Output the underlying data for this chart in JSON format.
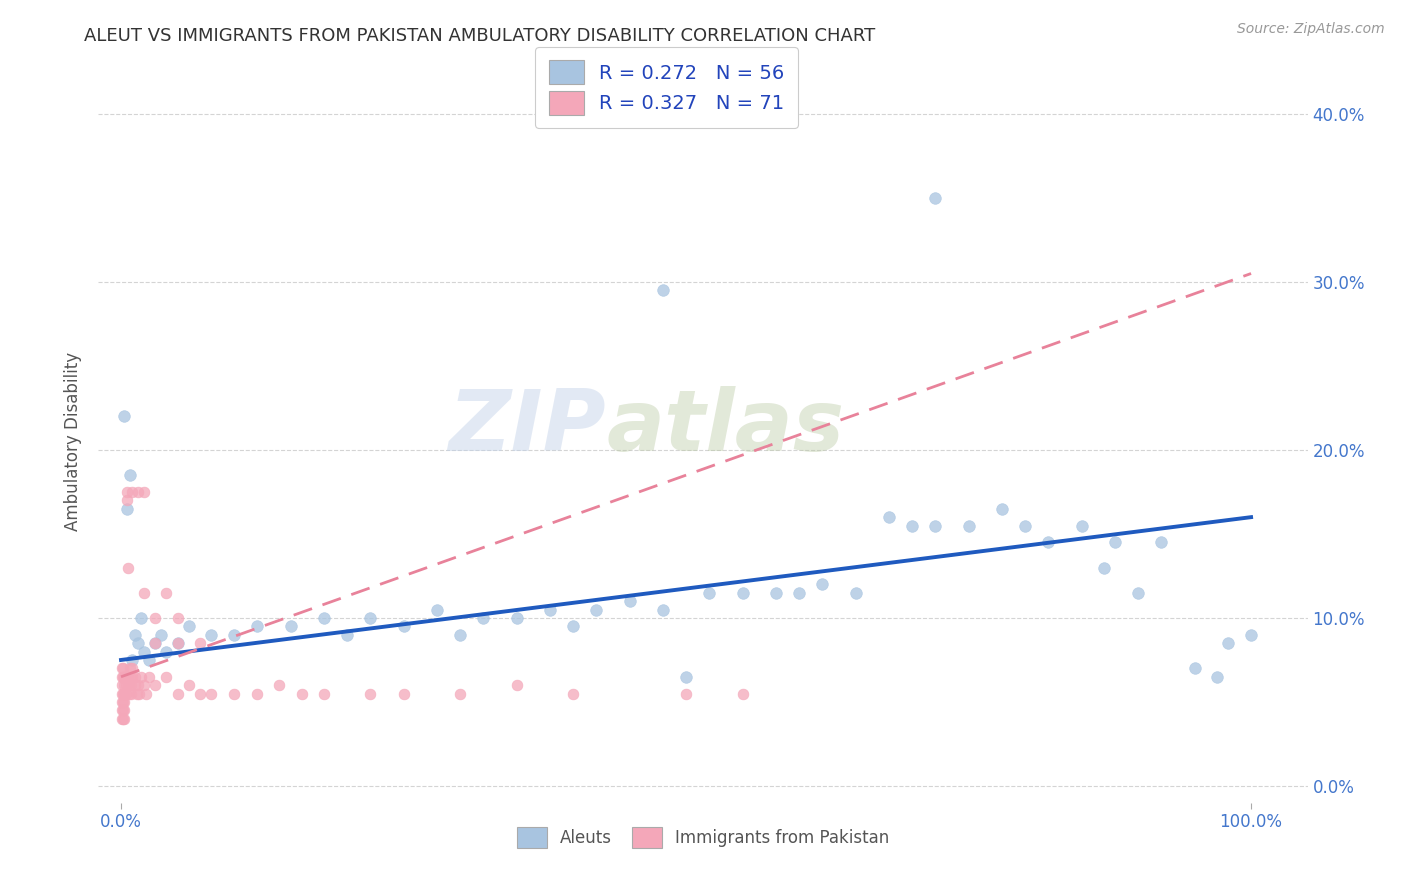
{
  "title": "ALEUT VS IMMIGRANTS FROM PAKISTAN AMBULATORY DISABILITY CORRELATION CHART",
  "source": "Source: ZipAtlas.com",
  "ylabel": "Ambulatory Disability",
  "legend_r1": "R = 0.272   N = 56",
  "legend_r2": "R = 0.327   N = 71",
  "watermark_zip": "ZIP",
  "watermark_atlas": "atlas",
  "aleut_color": "#a8c4e0",
  "pakistan_color": "#f4a7b9",
  "aleut_line_color": "#1f5abf",
  "pakistan_line_color": "#e8829a",
  "aleut_scatter": [
    [
      0.003,
      0.22
    ],
    [
      0.005,
      0.165
    ],
    [
      0.008,
      0.185
    ],
    [
      0.01,
      0.075
    ],
    [
      0.012,
      0.09
    ],
    [
      0.015,
      0.085
    ],
    [
      0.018,
      0.1
    ],
    [
      0.02,
      0.08
    ],
    [
      0.025,
      0.075
    ],
    [
      0.03,
      0.085
    ],
    [
      0.035,
      0.09
    ],
    [
      0.04,
      0.08
    ],
    [
      0.05,
      0.085
    ],
    [
      0.06,
      0.095
    ],
    [
      0.08,
      0.09
    ],
    [
      0.1,
      0.09
    ],
    [
      0.12,
      0.095
    ],
    [
      0.15,
      0.095
    ],
    [
      0.18,
      0.1
    ],
    [
      0.2,
      0.09
    ],
    [
      0.22,
      0.1
    ],
    [
      0.25,
      0.095
    ],
    [
      0.28,
      0.105
    ],
    [
      0.3,
      0.09
    ],
    [
      0.32,
      0.1
    ],
    [
      0.35,
      0.1
    ],
    [
      0.38,
      0.105
    ],
    [
      0.4,
      0.095
    ],
    [
      0.42,
      0.105
    ],
    [
      0.45,
      0.11
    ],
    [
      0.48,
      0.105
    ],
    [
      0.5,
      0.065
    ],
    [
      0.52,
      0.115
    ],
    [
      0.55,
      0.115
    ],
    [
      0.58,
      0.115
    ],
    [
      0.6,
      0.115
    ],
    [
      0.62,
      0.12
    ],
    [
      0.65,
      0.115
    ],
    [
      0.68,
      0.16
    ],
    [
      0.7,
      0.155
    ],
    [
      0.72,
      0.155
    ],
    [
      0.75,
      0.155
    ],
    [
      0.78,
      0.165
    ],
    [
      0.8,
      0.155
    ],
    [
      0.82,
      0.145
    ],
    [
      0.85,
      0.155
    ],
    [
      0.87,
      0.13
    ],
    [
      0.88,
      0.145
    ],
    [
      0.9,
      0.115
    ],
    [
      0.92,
      0.145
    ],
    [
      0.95,
      0.07
    ],
    [
      0.97,
      0.065
    ],
    [
      0.98,
      0.085
    ],
    [
      1.0,
      0.09
    ],
    [
      0.48,
      0.295
    ],
    [
      0.72,
      0.35
    ]
  ],
  "pakistan_scatter": [
    [
      0.001,
      0.065
    ],
    [
      0.001,
      0.07
    ],
    [
      0.001,
      0.05
    ],
    [
      0.001,
      0.055
    ],
    [
      0.001,
      0.045
    ],
    [
      0.001,
      0.06
    ],
    [
      0.001,
      0.04
    ],
    [
      0.002,
      0.065
    ],
    [
      0.002,
      0.055
    ],
    [
      0.002,
      0.07
    ],
    [
      0.002,
      0.045
    ],
    [
      0.002,
      0.05
    ],
    [
      0.002,
      0.04
    ],
    [
      0.003,
      0.06
    ],
    [
      0.003,
      0.055
    ],
    [
      0.003,
      0.065
    ],
    [
      0.003,
      0.05
    ],
    [
      0.003,
      0.045
    ],
    [
      0.003,
      0.04
    ],
    [
      0.004,
      0.065
    ],
    [
      0.004,
      0.055
    ],
    [
      0.004,
      0.06
    ],
    [
      0.005,
      0.17
    ],
    [
      0.005,
      0.175
    ],
    [
      0.006,
      0.065
    ],
    [
      0.006,
      0.13
    ],
    [
      0.007,
      0.055
    ],
    [
      0.007,
      0.06
    ],
    [
      0.008,
      0.065
    ],
    [
      0.008,
      0.07
    ],
    [
      0.009,
      0.055
    ],
    [
      0.009,
      0.06
    ],
    [
      0.01,
      0.07
    ],
    [
      0.01,
      0.065
    ],
    [
      0.012,
      0.065
    ],
    [
      0.012,
      0.06
    ],
    [
      0.014,
      0.055
    ],
    [
      0.015,
      0.06
    ],
    [
      0.016,
      0.055
    ],
    [
      0.018,
      0.065
    ],
    [
      0.02,
      0.06
    ],
    [
      0.022,
      0.055
    ],
    [
      0.025,
      0.065
    ],
    [
      0.03,
      0.06
    ],
    [
      0.04,
      0.065
    ],
    [
      0.05,
      0.055
    ],
    [
      0.06,
      0.06
    ],
    [
      0.07,
      0.055
    ],
    [
      0.08,
      0.055
    ],
    [
      0.1,
      0.055
    ],
    [
      0.12,
      0.055
    ],
    [
      0.14,
      0.06
    ],
    [
      0.16,
      0.055
    ],
    [
      0.18,
      0.055
    ],
    [
      0.22,
      0.055
    ],
    [
      0.25,
      0.055
    ],
    [
      0.3,
      0.055
    ],
    [
      0.35,
      0.06
    ],
    [
      0.4,
      0.055
    ],
    [
      0.5,
      0.055
    ],
    [
      0.55,
      0.055
    ],
    [
      0.03,
      0.085
    ],
    [
      0.05,
      0.085
    ],
    [
      0.07,
      0.085
    ],
    [
      0.03,
      0.1
    ],
    [
      0.05,
      0.1
    ],
    [
      0.02,
      0.115
    ],
    [
      0.04,
      0.115
    ],
    [
      0.01,
      0.175
    ],
    [
      0.02,
      0.175
    ],
    [
      0.015,
      0.175
    ]
  ],
  "xlim": [
    -0.02,
    1.05
  ],
  "ylim": [
    -0.01,
    0.42
  ],
  "ytick_vals": [
    0.0,
    0.1,
    0.2,
    0.3,
    0.4
  ],
  "ytick_labels": [
    "0.0%",
    "10.0%",
    "20.0%",
    "30.0%",
    "40.0%"
  ],
  "xtick_vals": [
    0.0,
    1.0
  ],
  "xtick_labels": [
    "0.0%",
    "100.0%"
  ],
  "background_color": "#ffffff",
  "grid_color": "#d0d0d0",
  "title_color": "#333333",
  "title_fontsize": 13,
  "axis_label_color": "#4477cc",
  "legend_text_color": "#2244bb",
  "bottom_legend_color": "#555555",
  "bottom_legend_labels": [
    "Aleuts",
    "Immigrants from Pakistan"
  ],
  "aleut_line_start_y": 0.075,
  "aleut_line_end_y": 0.16,
  "pakistan_line_start_y": 0.065,
  "pakistan_line_end_y": 0.305
}
